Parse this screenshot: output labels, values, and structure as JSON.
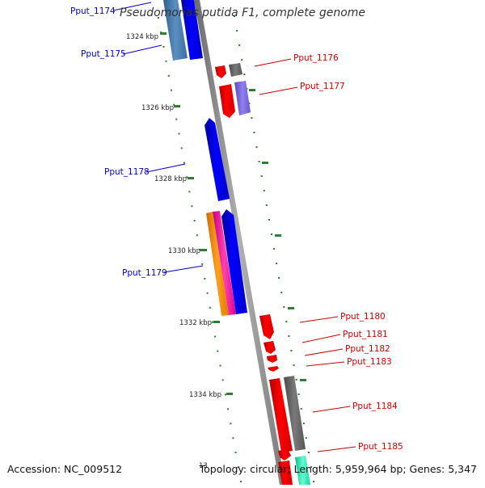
{
  "title": "Pseudomonas putida F1, complete genome",
  "footer": {
    "accession": "Accession: NC_009512",
    "summary": "Topology: circular; Length: 5,959,964 bp; Genes: 5,347"
  },
  "scale_labels": [
    "1324 kbp",
    "1326 kbp",
    "1328 kbp",
    "1330 kbp",
    "1332 kbp",
    "1334 kbp",
    "13"
  ],
  "gene_labels": [
    {
      "text": "Pput_1174",
      "strand": "forward"
    },
    {
      "text": "Pput_1175",
      "strand": "forward"
    },
    {
      "text": "Pput_1176",
      "strand": "reverse"
    },
    {
      "text": "Pput_1177",
      "strand": "reverse"
    },
    {
      "text": "Pput_1178",
      "strand": "forward"
    },
    {
      "text": "Pput_1179",
      "strand": "forward"
    },
    {
      "text": "Pput_1180",
      "strand": "reverse"
    },
    {
      "text": "Pput_1181",
      "strand": "reverse"
    },
    {
      "text": "Pput_1182",
      "strand": "reverse"
    },
    {
      "text": "Pput_1183",
      "strand": "reverse"
    },
    {
      "text": "Pput_1184",
      "strand": "reverse"
    },
    {
      "text": "Pput_1185",
      "strand": "reverse"
    }
  ],
  "colors": {
    "forward_label": "#0000cc",
    "reverse_label": "#cc0000",
    "backbone": "#8c8c8c",
    "tick": "#2e7d32"
  }
}
